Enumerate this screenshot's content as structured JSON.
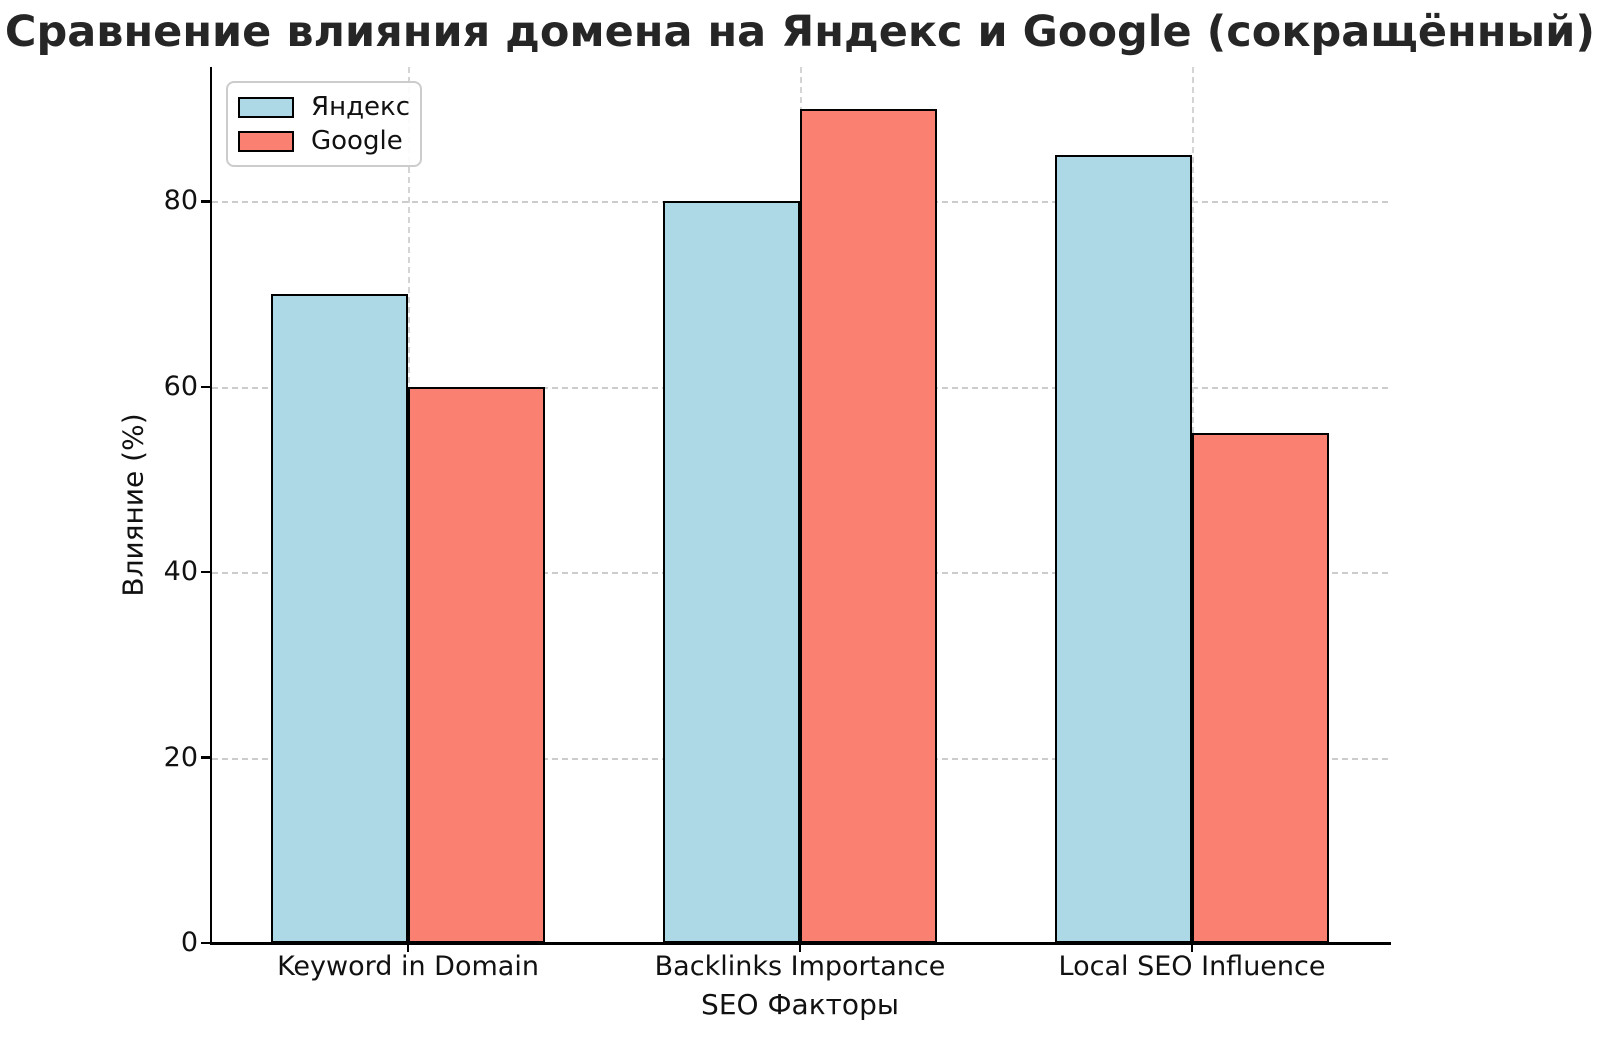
{
  "chart_data": {
    "type": "bar",
    "title": "Сравнение влияния домена на Яндекс и Google (сокращённый)",
    "xlabel": "SEO Факторы",
    "ylabel": "Влияние (%)",
    "categories": [
      "Keyword in Domain",
      "Backlinks Importance",
      "Local SEO Influence"
    ],
    "series": [
      {
        "name": "Яндекс",
        "color": "#ADD8E6",
        "values": [
          70,
          80,
          85
        ]
      },
      {
        "name": "Google",
        "color": "#FA8072",
        "values": [
          60,
          90,
          55
        ]
      }
    ],
    "yticks": [
      0,
      20,
      40,
      60,
      80
    ],
    "ylim": [
      0,
      94.5
    ],
    "bar_width_fraction": 0.35,
    "grid": {
      "on": true,
      "style": "dashed",
      "color": "#cccccc",
      "axisbelow": true
    },
    "legend": {
      "position": "upper-left"
    },
    "colors": {
      "bar_edge": "#000000",
      "spine": "#000000",
      "text": "#111111",
      "title_text": "#262626",
      "background": "#ffffff"
    }
  }
}
